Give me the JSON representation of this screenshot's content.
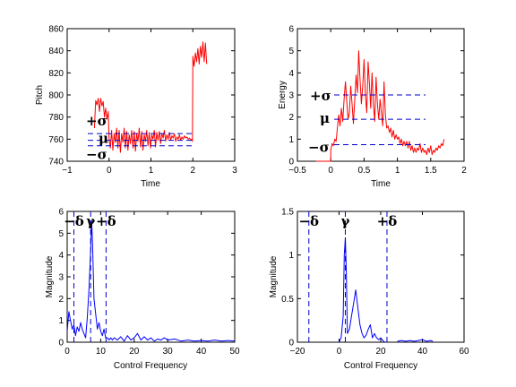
{
  "chart_data": [
    {
      "type": "line",
      "xlabel": "Time",
      "ylabel": "Pitch",
      "xlim": [
        -1,
        3
      ],
      "ylim": [
        740,
        860
      ],
      "xticks": [
        -1,
        0,
        1,
        2,
        3
      ],
      "yticks": [
        740,
        760,
        780,
        800,
        820,
        840,
        860
      ],
      "xtick_labels": [
        "−1",
        "0",
        "1",
        "2",
        "3"
      ],
      "ytick_labels": [
        "740",
        "760",
        "780",
        "800",
        "820",
        "840",
        "860"
      ],
      "series": [
        {
          "color": "#ff0000",
          "x": [
            -0.35,
            -0.32,
            -0.29,
            -0.26,
            -0.23,
            -0.2,
            -0.17,
            -0.14,
            -0.11,
            -0.08,
            -0.05,
            -0.02,
            0.0,
            0.03,
            0.06,
            0.09,
            0.12,
            0.15,
            0.18,
            0.21,
            0.24,
            0.27,
            0.3,
            0.33,
            0.36,
            0.39,
            0.42,
            0.45,
            0.48,
            0.51,
            0.54,
            0.57,
            0.6,
            0.63,
            0.66,
            0.69,
            0.72,
            0.75,
            0.78,
            0.81,
            0.84,
            0.87,
            0.9,
            0.93,
            0.96,
            0.99,
            1.02,
            1.05,
            1.08,
            1.11,
            1.14,
            1.17,
            1.2,
            1.23,
            1.26,
            1.29,
            1.32,
            1.35,
            1.38,
            1.41,
            1.44,
            1.47,
            1.5,
            1.53,
            1.56,
            1.59,
            1.62,
            1.65,
            1.68,
            1.71,
            1.74,
            1.77,
            1.8,
            1.83,
            1.86,
            1.89,
            1.92,
            1.95,
            1.98,
            1.99,
            2.0,
            2.03,
            2.06,
            2.09,
            2.12,
            2.15,
            2.18,
            2.21,
            2.24,
            2.27,
            2.3,
            2.33
          ],
          "y": [
            770,
            795,
            791,
            797,
            785,
            797,
            790,
            794,
            780,
            788,
            778,
            785,
            760,
            752,
            768,
            750,
            765,
            757,
            770,
            752,
            768,
            748,
            765,
            757,
            770,
            752,
            767,
            750,
            764,
            756,
            768,
            752,
            767,
            749,
            765,
            758,
            770,
            753,
            767,
            750,
            764,
            758,
            768,
            754,
            766,
            752,
            764,
            760,
            768,
            753,
            766,
            759,
            767,
            756,
            765,
            761,
            768,
            758,
            764,
            760,
            766,
            759,
            763,
            761,
            765,
            758,
            762,
            760,
            764,
            759,
            762,
            760,
            763,
            761,
            762,
            760,
            761,
            759,
            760,
            758,
            835,
            826,
            838,
            830,
            842,
            828,
            844,
            834,
            848,
            830,
            847,
            828
          ]
        }
      ],
      "guides": [
        {
          "label": "+σ",
          "y": 765
        },
        {
          "label": "μ",
          "y": 759
        },
        {
          "label": "−σ",
          "y": 754
        }
      ]
    },
    {
      "type": "line",
      "xlabel": "Time",
      "ylabel": "Energy",
      "xlim": [
        -0.5,
        2
      ],
      "ylim": [
        0,
        6
      ],
      "xticks": [
        -0.5,
        0,
        0.5,
        1,
        1.5,
        2
      ],
      "yticks": [
        0,
        1,
        2,
        3,
        4,
        5,
        6
      ],
      "xtick_labels": [
        "−0.5",
        "0",
        "0.5",
        "1",
        "1.5",
        "2"
      ],
      "ytick_labels": [
        "0",
        "1",
        "2",
        "3",
        "4",
        "5",
        "6"
      ],
      "series": [
        {
          "color": "#ff0000",
          "x": [
            -0.22,
            0.0,
            0.0,
            0.02,
            0.04,
            0.06,
            0.08,
            0.1,
            0.12,
            0.14,
            0.16,
            0.18,
            0.2,
            0.22,
            0.24,
            0.26,
            0.28,
            0.3,
            0.32,
            0.34,
            0.36,
            0.38,
            0.4,
            0.42,
            0.44,
            0.46,
            0.48,
            0.5,
            0.52,
            0.54,
            0.56,
            0.58,
            0.6,
            0.62,
            0.64,
            0.66,
            0.68,
            0.7,
            0.72,
            0.74,
            0.76,
            0.78,
            0.8,
            0.82,
            0.84,
            0.86,
            0.88,
            0.9,
            0.92,
            0.94,
            0.96,
            0.98,
            1.0,
            1.02,
            1.04,
            1.06,
            1.08,
            1.1,
            1.12,
            1.14,
            1.16,
            1.18,
            1.2,
            1.22,
            1.24,
            1.26,
            1.28,
            1.3,
            1.32,
            1.34,
            1.36,
            1.38,
            1.4,
            1.42,
            1.44,
            1.46,
            1.48,
            1.5,
            1.52,
            1.54,
            1.56,
            1.58,
            1.6,
            1.62,
            1.64,
            1.66,
            1.68,
            1.7
          ],
          "y": [
            0.0,
            0.0,
            0.5,
            0.8,
            0.7,
            1.0,
            0.9,
            1.5,
            2.1,
            1.6,
            2.4,
            1.8,
            2.8,
            3.6,
            2.7,
            1.9,
            2.2,
            3.4,
            2.6,
            1.7,
            2.8,
            3.9,
            3.1,
            5.0,
            3.7,
            2.6,
            3.4,
            4.6,
            3.0,
            2.2,
            4.5,
            3.5,
            2.4,
            4.0,
            2.6,
            1.8,
            3.8,
            2.6,
            1.9,
            2.8,
            2.2,
            1.6,
            3.6,
            2.1,
            1.5,
            1.6,
            1.3,
            1.5,
            1.1,
            1.4,
            1.0,
            1.2,
            1.0,
            1.1,
            0.8,
            1.0,
            0.7,
            0.9,
            0.7,
            0.9,
            0.6,
            0.9,
            0.5,
            0.7,
            0.4,
            0.6,
            0.4,
            0.6,
            0.5,
            0.8,
            0.4,
            0.6,
            0.4,
            0.5,
            0.3,
            0.6,
            0.4,
            0.7,
            0.3,
            0.5,
            0.4,
            0.6,
            0.5,
            0.7,
            0.6,
            0.8,
            0.7,
            1.0
          ]
        }
      ],
      "guides": [
        {
          "label": "+σ",
          "y": 3.0
        },
        {
          "label": "μ",
          "y": 1.9
        },
        {
          "label": "−σ",
          "y": 0.75
        }
      ]
    },
    {
      "type": "line",
      "xlabel": "Control Frequency",
      "ylabel": "Magnitude",
      "xlim": [
        0,
        50
      ],
      "ylim": [
        0,
        6
      ],
      "xticks": [
        0,
        10,
        20,
        30,
        40,
        50
      ],
      "yticks": [
        0,
        1,
        2,
        3,
        4,
        5,
        6
      ],
      "xtick_labels": [
        "0",
        "10",
        "20",
        "30",
        "40",
        "50"
      ],
      "ytick_labels": [
        "0",
        "1",
        "2",
        "3",
        "4",
        "5",
        "6"
      ],
      "series": [
        {
          "color": "#0000ff",
          "x": [
            0,
            0.5,
            1.0,
            1.5,
            2.0,
            2.5,
            3.0,
            3.5,
            4.0,
            4.5,
            5.0,
            5.5,
            6.0,
            6.5,
            7.0,
            7.3,
            7.6,
            8.0,
            8.5,
            9.0,
            9.5,
            10.0,
            10.5,
            11.0,
            11.5,
            12.0,
            12.5,
            13.0,
            13.5,
            14.0,
            15.0,
            16.0,
            17.0,
            18.0,
            19.0,
            20.0,
            21.0,
            22.0,
            23.0,
            24.0,
            25.0,
            26.0,
            27.0,
            28.0,
            29.0,
            30.0,
            32.0,
            34.0,
            36.0,
            38.0,
            40.0,
            42.0,
            44.0,
            46.0,
            48.0,
            50.0
          ],
          "y": [
            0.5,
            1.4,
            1.0,
            0.6,
            0.8,
            0.3,
            0.7,
            0.5,
            0.9,
            0.6,
            0.4,
            0.2,
            1.1,
            2.4,
            4.2,
            5.6,
            4.4,
            2.0,
            1.3,
            0.6,
            0.9,
            0.5,
            0.3,
            0.6,
            0.2,
            0.2,
            0.1,
            0.2,
            0.1,
            0.2,
            0.1,
            0.25,
            0.05,
            0.3,
            0.1,
            0.2,
            0.4,
            0.1,
            0.25,
            0.1,
            0.2,
            0.05,
            0.15,
            0.1,
            0.2,
            0.1,
            0.15,
            0.05,
            0.1,
            0.05,
            0.08,
            0.05,
            0.1,
            0.05,
            0.08,
            0.05
          ]
        }
      ],
      "guides": [
        {
          "label": "−δ",
          "x": 2
        },
        {
          "label": "γ",
          "x": 7
        },
        {
          "label": "+δ",
          "x": 11.6
        }
      ]
    },
    {
      "type": "line",
      "xlabel": "Control Frequency",
      "ylabel": "Magnitude",
      "xlim": [
        -20,
        60
      ],
      "ylim": [
        0,
        1.5
      ],
      "xticks": [
        -20,
        0,
        20,
        40,
        60
      ],
      "yticks": [
        0,
        0.5,
        1,
        1.5
      ],
      "xtick_labels": [
        "−20",
        "0",
        "20",
        "40",
        "60"
      ],
      "ytick_labels": [
        "0",
        "0.5",
        "1",
        "1.5"
      ],
      "series": [
        {
          "color": "#0000ff",
          "x": [
            0,
            1.0,
            2.0,
            2.5,
            3.0,
            3.5,
            4.0,
            5.0,
            6.0,
            7.0,
            8.0,
            9.0,
            10.0,
            11.0,
            12.0,
            13.0,
            14.0,
            15.0,
            16.0,
            17.0,
            18.0,
            19.0,
            20.0,
            21.0,
            22.0
          ],
          "y": [
            0.0,
            0.05,
            0.3,
            1.0,
            1.2,
            0.8,
            0.1,
            0.15,
            0.3,
            0.45,
            0.6,
            0.4,
            0.2,
            0.1,
            0.05,
            0.08,
            0.15,
            0.2,
            0.05,
            0.1,
            0.05,
            0.03,
            0.05,
            0.02,
            0.0
          ]
        },
        {
          "color": "#0000ff",
          "x": [
            28,
            30,
            32,
            34,
            36,
            38,
            40,
            42,
            44,
            45
          ],
          "y": [
            0.01,
            0.02,
            0.01,
            0.02,
            0.01,
            0.02,
            0.03,
            0.01,
            0.02,
            0.01
          ]
        }
      ],
      "guides": [
        {
          "label": "−δ",
          "x": -14.5
        },
        {
          "label": "γ",
          "x": 3
        },
        {
          "label": "+δ",
          "x": 23
        }
      ]
    }
  ]
}
